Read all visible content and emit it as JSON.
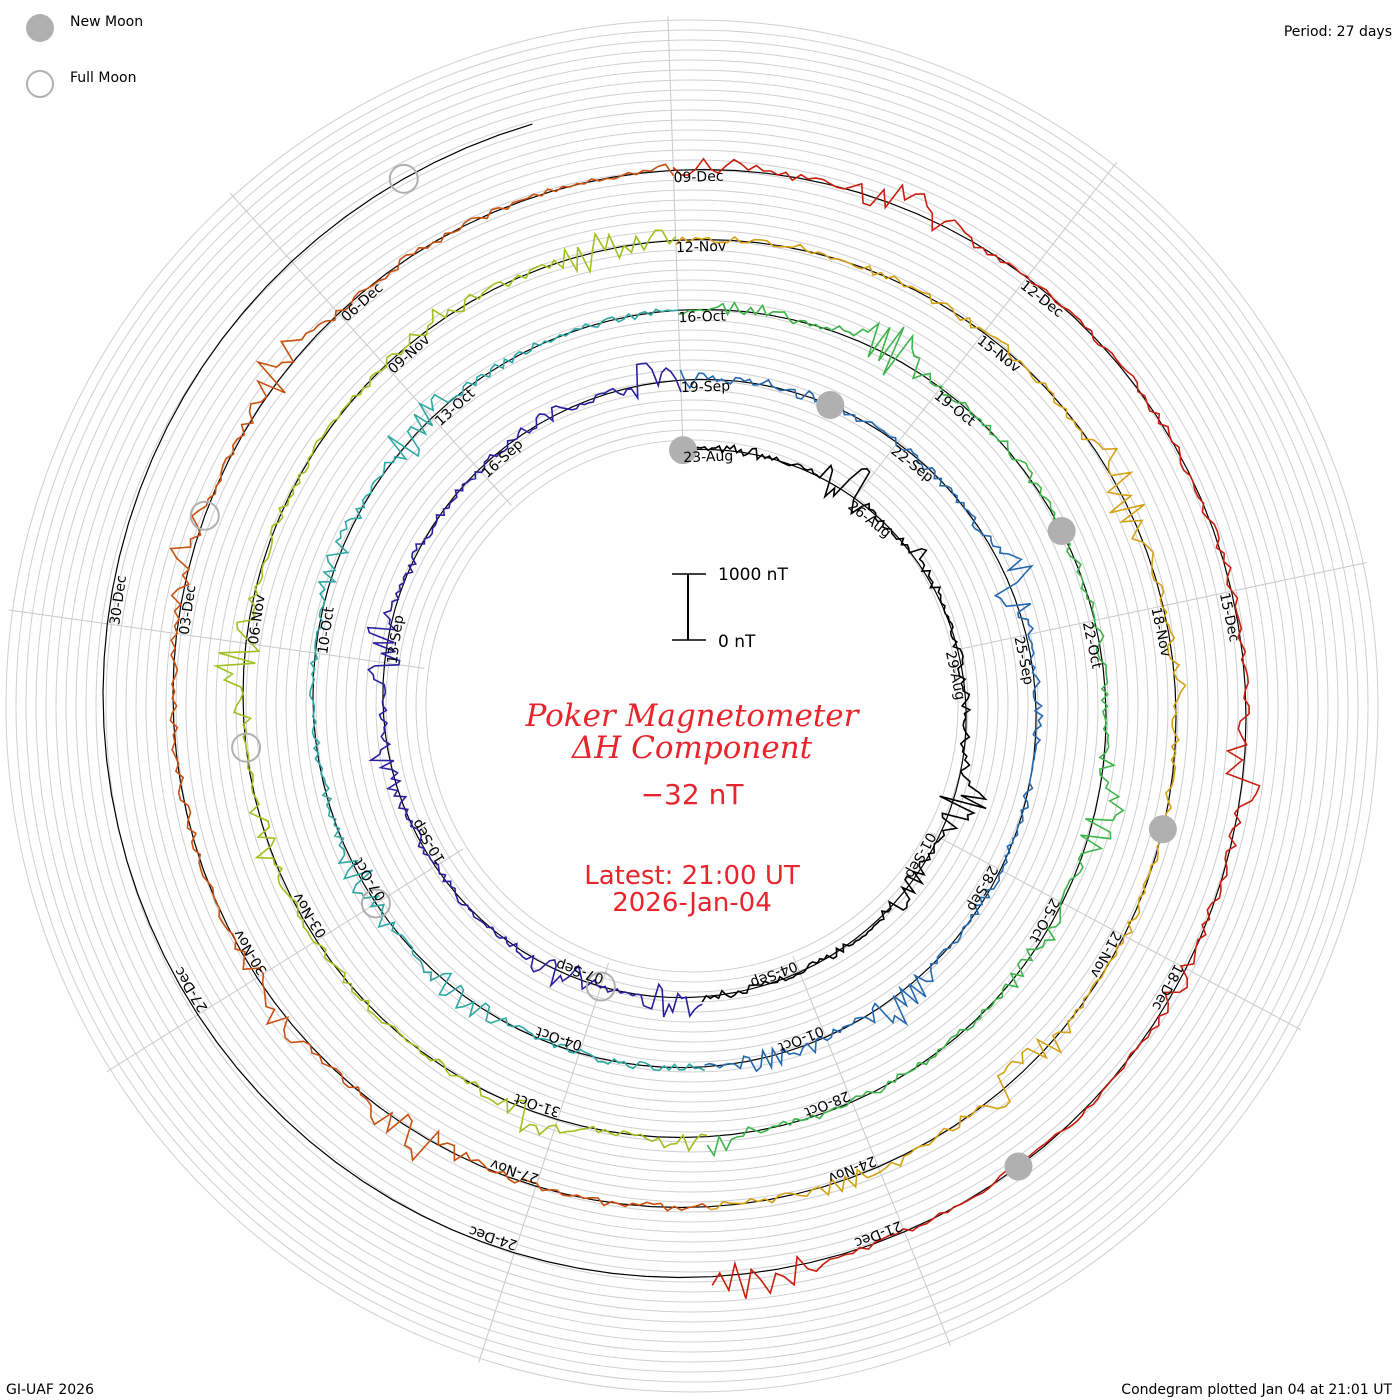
{
  "legend": {
    "new_moon": "New Moon",
    "full_moon": "Full Moon",
    "new_moon_color": "#b0b0b0",
    "full_moon_color": "#b0b0b0"
  },
  "period_label": "Period: 27 days",
  "footer_left": "GI-UAF 2026",
  "footer_right": "Condegram plotted Jan 04 at 21:01 UT",
  "center": {
    "title_line1": "Poker Magnetometer",
    "title_line2": "ΔH Component",
    "current_value": "−32 nT",
    "latest_line1": "Latest: 21:00 UT",
    "latest_line2": "2026-Jan-04",
    "color": "#e8242c"
  },
  "scale_bar": {
    "top_label": "1000 nT",
    "bottom_label": "0 nT"
  },
  "chart_data": {
    "type": "line",
    "period_days": 27,
    "first_date": "23-Aug",
    "last_date": "04-Jan",
    "date_ticks": [
      "23-Aug",
      "26-Aug",
      "29-Aug",
      "01-Sep",
      "04-Sep",
      "07-Sep",
      "10-Sep",
      "13-Sep",
      "16-Sep",
      "19-Sep",
      "22-Sep",
      "25-Sep",
      "28-Sep",
      "01-Oct",
      "04-Oct",
      "07-Oct",
      "10-Oct",
      "13-Oct",
      "16-Oct",
      "19-Oct",
      "22-Oct",
      "25-Oct",
      "28-Oct",
      "31-Oct",
      "03-Nov",
      "06-Nov",
      "09-Nov",
      "12-Nov",
      "15-Nov",
      "18-Nov",
      "21-Nov",
      "24-Nov",
      "27-Nov",
      "30-Nov",
      "03-Dec",
      "06-Dec",
      "09-Dec",
      "12-Dec",
      "15-Dec",
      "18-Dec",
      "21-Dec",
      "24-Dec",
      "27-Dec",
      "30-Dec"
    ],
    "series_colors": [
      "#000000",
      "#2a1f9e",
      "#2468ae",
      "#2fa8a4",
      "#3db54a",
      "#a0c01e",
      "#d4a015",
      "#c85010",
      "#c81e0e"
    ],
    "moon_phases": [
      {
        "type": "new",
        "date": "23-Aug"
      },
      {
        "type": "full",
        "date": "07-Sep"
      },
      {
        "type": "new",
        "date": "21-Sep"
      },
      {
        "type": "full",
        "date": "07-Oct"
      },
      {
        "type": "new",
        "date": "21-Oct"
      },
      {
        "type": "full",
        "date": "05-Nov"
      },
      {
        "type": "new",
        "date": "20-Nov"
      },
      {
        "type": "full",
        "date": "04-Dec"
      },
      {
        "type": "new",
        "date": "20-Dec"
      },
      {
        "type": "full",
        "date": "03-Jan"
      }
    ],
    "grid": true,
    "scale_nT": 1000
  }
}
